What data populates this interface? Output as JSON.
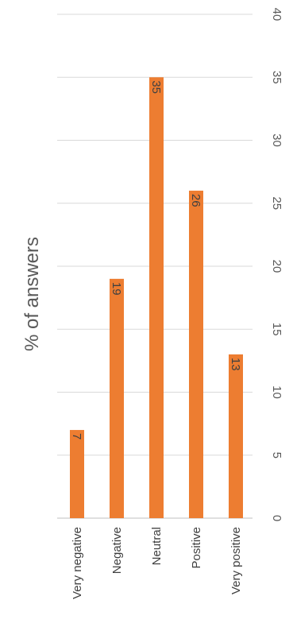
{
  "chart_data": {
    "type": "bar",
    "orientation": "rotated-90-clockwise",
    "categories": [
      "Very negative",
      "Negative",
      "Neutral",
      "Positive",
      "Very positive"
    ],
    "values": [
      7,
      19,
      35,
      26,
      13
    ],
    "data_labels": [
      "7",
      "19",
      "35",
      "26",
      "13"
    ],
    "title": "",
    "ylabel": "% of answers",
    "xlabel": "",
    "ylim": [
      0,
      40
    ],
    "yticks": [
      0,
      5,
      10,
      15,
      20,
      25,
      30,
      35,
      40
    ],
    "ytick_labels": [
      "0",
      "5",
      "10",
      "15",
      "20",
      "25",
      "30",
      "35",
      "40"
    ],
    "grid": true,
    "legend": "none",
    "bar_color": "#ed7d31"
  }
}
